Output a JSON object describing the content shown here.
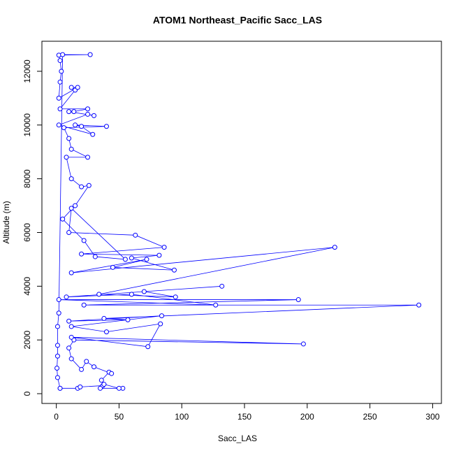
{
  "chart_data": {
    "type": "line",
    "markers": true,
    "title": "ATOM1 Northeast_Pacific Sacc_LAS",
    "xlabel": "Sacc_LAS",
    "ylabel": "Altitude (m)",
    "color": "#0000ff",
    "xlim": [
      -11.5,
      307
    ],
    "ylim": [
      -364,
      13118
    ],
    "xticks": [
      0,
      50,
      100,
      150,
      200,
      250,
      300
    ],
    "yticks": [
      0,
      2000,
      4000,
      6000,
      8000,
      10000,
      12000
    ],
    "x": [
      3,
      17,
      19,
      37,
      35,
      53,
      50,
      38,
      36,
      42,
      44,
      30,
      24,
      20,
      12,
      10,
      14,
      197,
      12,
      73,
      83,
      40,
      12,
      84,
      10,
      57,
      38,
      289,
      22,
      193,
      2,
      127,
      60,
      8,
      132,
      70,
      95,
      34,
      222,
      12,
      72,
      45,
      94,
      60,
      82,
      20,
      86,
      63,
      10,
      12,
      55,
      31,
      22,
      5,
      15,
      26,
      20,
      12,
      8,
      25,
      12,
      10,
      6,
      40,
      15,
      20,
      29,
      2,
      25,
      30,
      10,
      14,
      25,
      3,
      15,
      12,
      17,
      2,
      3,
      4,
      3,
      2,
      27,
      5,
      2,
      1,
      1,
      1,
      0.5,
      1,
      3
    ],
    "series": [
      {
        "name": "Sacc_LAS",
        "values": [
          200,
          200,
          250,
          300,
          200,
          200,
          200,
          350,
          500,
          800,
          750,
          1000,
          1200,
          900,
          1300,
          1700,
          2000,
          1850,
          2100,
          1750,
          2600,
          2300,
          2500,
          2900,
          2700,
          2750,
          2800,
          3300,
          3300,
          3500,
          3500,
          3300,
          3700,
          3600,
          4000,
          3800,
          3600,
          3700,
          5450,
          4500,
          5000,
          4700,
          4600,
          5050,
          5150,
          5200,
          5450,
          5900,
          6000,
          6900,
          5000,
          5100,
          5700,
          6500,
          7000,
          7750,
          7700,
          8000,
          8800,
          8800,
          9100,
          9500,
          9900,
          9950,
          10000,
          9950,
          9650,
          10000,
          10400,
          10350,
          10500,
          10500,
          10600,
          10600,
          11300,
          11400,
          11400,
          11000,
          11600,
          12000,
          12400,
          12600,
          12620,
          12620,
          3000,
          2500,
          1800,
          1400,
          950,
          600,
          200
        ]
      }
    ]
  }
}
